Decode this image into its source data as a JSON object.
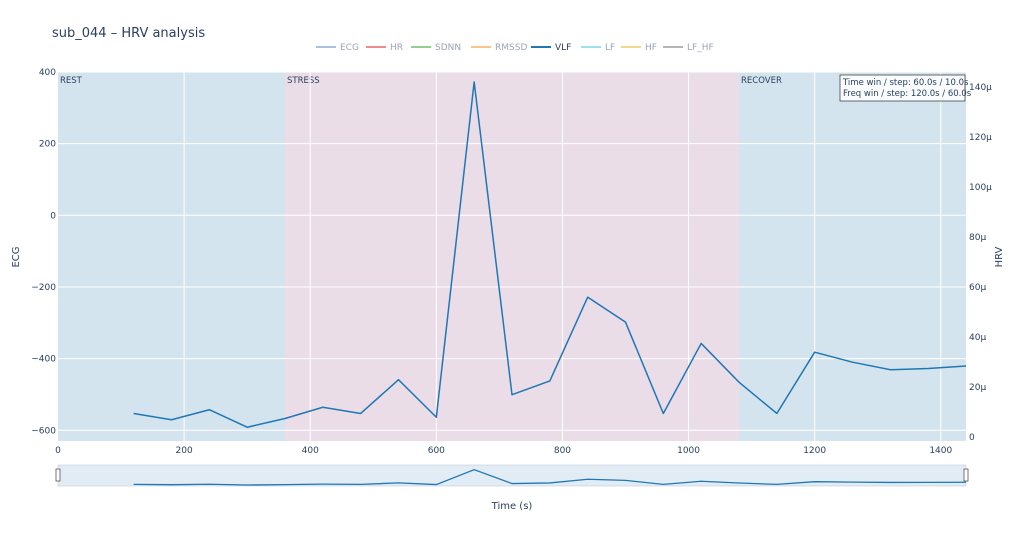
{
  "chart_data": {
    "type": "line",
    "title": "sub_044 – HRV analysis",
    "xlabel": "Time (s)",
    "ylabel_left": "ECG",
    "ylabel_right": "HRV",
    "xlim": [
      0,
      1440
    ],
    "ylim_left": [
      -630,
      400
    ],
    "ylim_right": [
      -1.5,
      146
    ],
    "x_ticks": [
      0,
      200,
      400,
      600,
      800,
      1000,
      1200,
      1400
    ],
    "y_left_ticks": [
      400,
      200,
      0,
      -200,
      -400,
      -600
    ],
    "y_right_ticks": [
      0,
      20,
      40,
      60,
      80,
      100,
      120,
      140
    ],
    "y_right_tick_labels": [
      "0",
      "20µ",
      "40µ",
      "60µ",
      "80µ",
      "100µ",
      "120µ",
      "140µ"
    ],
    "grid": true,
    "legend": {
      "position": "top-center",
      "entries": [
        {
          "name": "ECG",
          "color": "#a8c1df"
        },
        {
          "name": "HR",
          "color": "#ef8b8b"
        },
        {
          "name": "SDNN",
          "color": "#8fd18f"
        },
        {
          "name": "RMSSD",
          "color": "#f7c68a"
        },
        {
          "name": "VLF",
          "color": "#1f77b4"
        },
        {
          "name": "LF",
          "color": "#9ee0f0"
        },
        {
          "name": "HF",
          "color": "#f0d98a"
        },
        {
          "name": "LF_HF",
          "color": "#b5b5b5"
        }
      ]
    },
    "phases": [
      {
        "label": "REST",
        "start": 0,
        "end": 360,
        "color": "#d4e4ee"
      },
      {
        "label": "STRESS",
        "start": 360,
        "end": 1080,
        "color": "#eadde8"
      },
      {
        "label": "RECOVER",
        "start": 1080,
        "end": 1440,
        "color": "#d4e4ee"
      }
    ],
    "annotation": [
      "Time win / step: 60.0s / 10.0s",
      "Freq win / step: 120.0s / 60.0s"
    ],
    "series": [
      {
        "name": "VLF",
        "axis": "right",
        "color": "#1f77b4",
        "x": [
          120,
          180,
          240,
          300,
          360,
          420,
          480,
          540,
          600,
          660,
          720,
          780,
          840,
          900,
          960,
          1020,
          1080,
          1140,
          1200,
          1260,
          1320,
          1380,
          1440
        ],
        "y": [
          9.5,
          7,
          11,
          4,
          7.5,
          12,
          9.5,
          23,
          8,
          142,
          17,
          22.5,
          56,
          46,
          9.5,
          37.5,
          22,
          9.5,
          34,
          30,
          27,
          27.5,
          28.5
        ]
      }
    ]
  }
}
